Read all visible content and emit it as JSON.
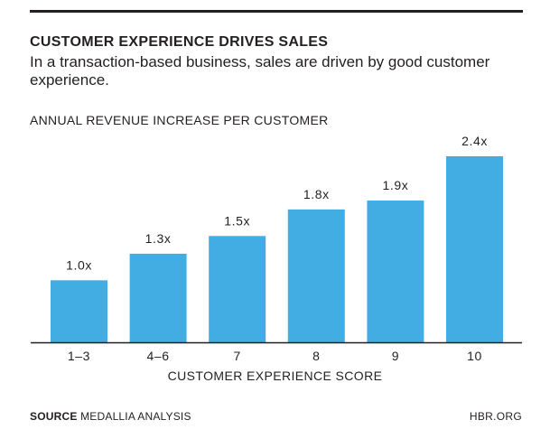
{
  "title": "CUSTOMER EXPERIENCE DRIVES SALES",
  "subtitle": "In a transaction-based business, sales are driven by good customer experience.",
  "chart_label": "ANNUAL REVENUE INCREASE PER CUSTOMER",
  "source_label": "SOURCE",
  "source_text": "MEDALLIA ANALYSIS",
  "brand": "HBR.ORG",
  "colors": {
    "bar": "#42ade2",
    "text": "#231f20"
  },
  "chart_data": {
    "type": "bar",
    "title": "ANNUAL REVENUE INCREASE PER CUSTOMER",
    "xlabel": "CUSTOMER EXPERIENCE SCORE",
    "ylabel": "",
    "categories": [
      "1–3",
      "4–6",
      "7",
      "8",
      "9",
      "10"
    ],
    "values": [
      1.0,
      1.3,
      1.5,
      1.8,
      1.9,
      2.4
    ],
    "value_labels": [
      "1.0x",
      "1.3x",
      "1.5x",
      "1.8x",
      "1.9x",
      "2.4x"
    ],
    "ylim": [
      0.3,
      2.4
    ],
    "grid": false
  }
}
